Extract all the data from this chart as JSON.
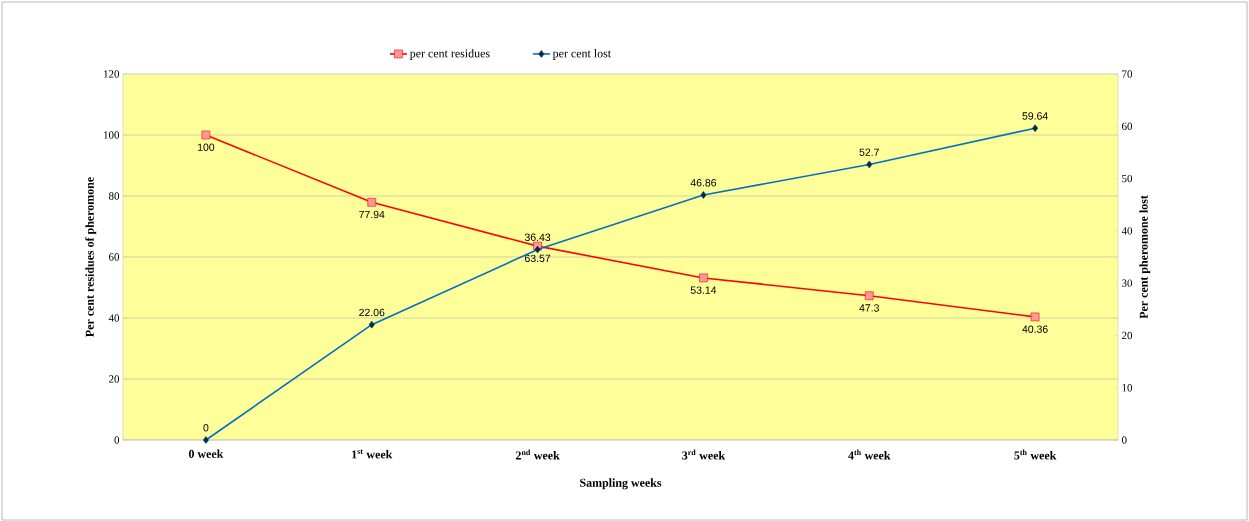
{
  "chart_data": {
    "type": "line",
    "xlabel": "Sampling weeks",
    "ylabel": "Per cent residues of pheromone",
    "y2label": "Per cent pheromone lost",
    "categories": [
      "0 week",
      "1$^{st}$ week",
      "2$^{nd}$ week",
      "3$^{rd}$ week",
      "4$^{th}$ week",
      "5$^{th}$ week"
    ],
    "series": [
      {
        "name": "per cent residues",
        "color": "#ff0000",
        "marker": "square",
        "values": [
          100,
          77.94,
          63.57,
          53.14,
          47.3,
          40.36
        ]
      },
      {
        "name": "per cent lost",
        "color": "#0070c0",
        "marker": "diamond",
        "axis": "y2",
        "values": [
          0,
          22.06,
          36.43,
          46.86,
          52.7,
          59.64
        ]
      }
    ],
    "ylim": [
      0,
      120
    ],
    "yticks": [
      0,
      20,
      40,
      60,
      80,
      100,
      120
    ],
    "y2lim": [
      0,
      70
    ],
    "y2ticks": [
      0,
      10,
      20,
      30,
      40,
      50,
      60,
      70
    ],
    "grid": "y",
    "legend": "top",
    "data_labels": true
  }
}
